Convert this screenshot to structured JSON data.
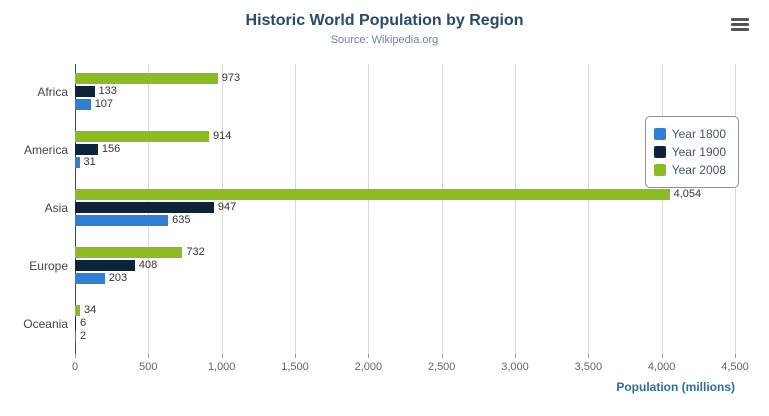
{
  "chart_data": {
    "type": "bar",
    "title": "Historic World Population by Region",
    "subtitle": "Source: Wikipedia.org",
    "xlabel": "Population (millions)",
    "categories": [
      "Africa",
      "America",
      "Asia",
      "Europe",
      "Oceania"
    ],
    "series": [
      {
        "name": "Year 1800",
        "color": "#2f7ed8",
        "values": [
          107,
          31,
          635,
          203,
          2
        ]
      },
      {
        "name": "Year 1900",
        "color": "#0d233a",
        "values": [
          133,
          156,
          947,
          408,
          6
        ]
      },
      {
        "name": "Year 2008",
        "color": "#8bbc21",
        "values": [
          973,
          914,
          4054,
          732,
          34
        ]
      }
    ],
    "xlim": [
      0,
      4500
    ],
    "x_ticks": [
      0,
      500,
      1000,
      1500,
      2000,
      2500,
      3000,
      3500,
      4000,
      4500
    ],
    "grid": true,
    "legend_position": "right",
    "bar_order_top_to_bottom": [
      "Year 2008",
      "Year 1900",
      "Year 1800"
    ]
  },
  "icons": {
    "export_menu": "hamburger-menu-icon"
  }
}
